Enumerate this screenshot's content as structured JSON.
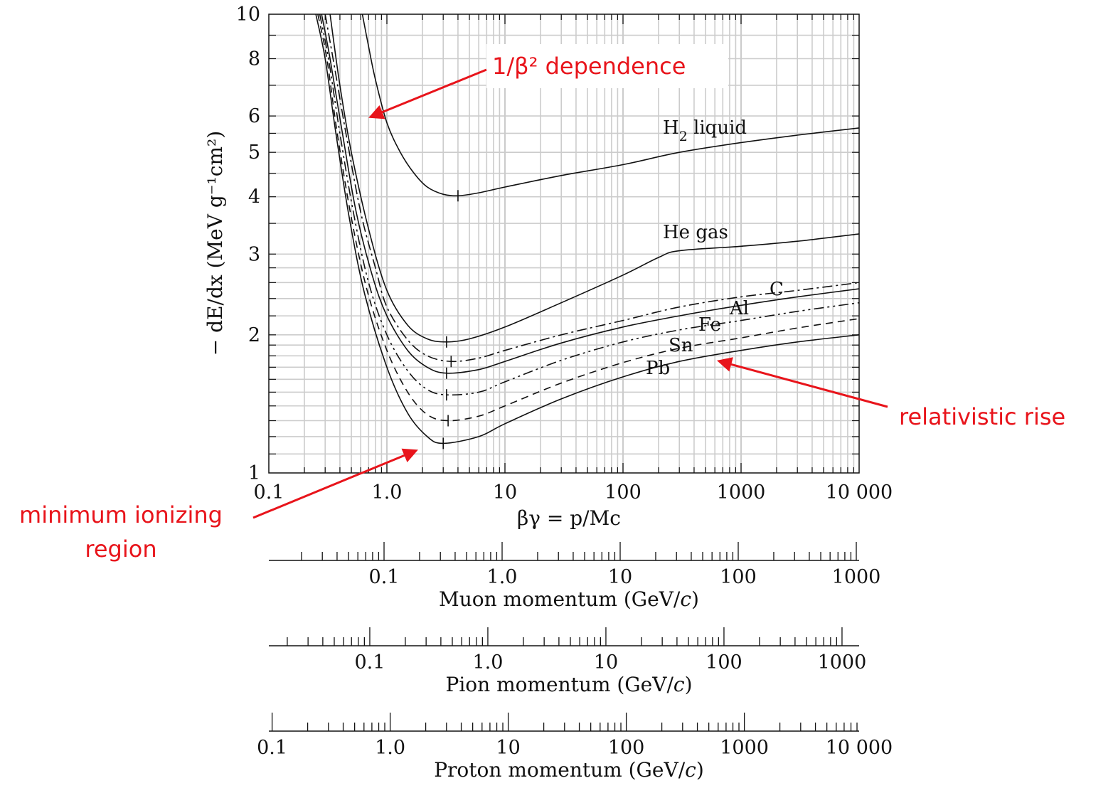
{
  "chart_data": {
    "type": "line",
    "xscale": "log",
    "yscale": "log",
    "xlim": [
      0.1,
      10000
    ],
    "ylim": [
      1,
      10
    ],
    "grid": true,
    "x_ticks": [
      "0.1",
      "1.0",
      "10",
      "100",
      "1000",
      "10 000"
    ],
    "y_ticks": [
      "1",
      "2",
      "3",
      "4",
      "5",
      "6",
      "8",
      "10"
    ],
    "xlabel": "βγ = p/Mc",
    "ylabel": "− dE/dx (MeV g⁻¹cm²)",
    "series": [
      {
        "name": "H2 liquid",
        "label_main": "H",
        "label_sub": "2",
        "label_rest": " liquid",
        "min_bg": 4.0,
        "points": [
          [
            0.62,
            10
          ],
          [
            0.7,
            8.5
          ],
          [
            0.8,
            7.2
          ],
          [
            1.0,
            5.8
          ],
          [
            1.3,
            5.0
          ],
          [
            1.7,
            4.5
          ],
          [
            2.2,
            4.2
          ],
          [
            3.0,
            4.05
          ],
          [
            4.0,
            4.02
          ],
          [
            6,
            4.08
          ],
          [
            10,
            4.2
          ],
          [
            30,
            4.45
          ],
          [
            100,
            4.7
          ],
          [
            300,
            5.0
          ],
          [
            1000,
            5.25
          ],
          [
            3000,
            5.45
          ],
          [
            10000,
            5.65
          ]
        ]
      },
      {
        "name": "He gas",
        "label_main": "He gas",
        "min_bg": 3.2,
        "points": [
          [
            0.33,
            10
          ],
          [
            0.4,
            7.0
          ],
          [
            0.5,
            5.0
          ],
          [
            0.7,
            3.4
          ],
          [
            1.0,
            2.5
          ],
          [
            1.5,
            2.1
          ],
          [
            2.2,
            1.96
          ],
          [
            3.2,
            1.93
          ],
          [
            5,
            1.96
          ],
          [
            10,
            2.08
          ],
          [
            30,
            2.35
          ],
          [
            100,
            2.7
          ],
          [
            200,
            2.95
          ],
          [
            300,
            3.05
          ],
          [
            1000,
            3.12
          ],
          [
            3000,
            3.2
          ],
          [
            10000,
            3.32
          ]
        ]
      },
      {
        "name": "C",
        "label_main": "C",
        "min_bg": 3.5,
        "points": [
          [
            0.3,
            10
          ],
          [
            0.35,
            8.0
          ],
          [
            0.45,
            5.5
          ],
          [
            0.6,
            3.7
          ],
          [
            0.8,
            2.8
          ],
          [
            1.0,
            2.3
          ],
          [
            1.5,
            1.95
          ],
          [
            2.2,
            1.8
          ],
          [
            3.5,
            1.75
          ],
          [
            6,
            1.78
          ],
          [
            10,
            1.85
          ],
          [
            30,
            2.0
          ],
          [
            100,
            2.15
          ],
          [
            300,
            2.3
          ],
          [
            1000,
            2.42
          ],
          [
            3000,
            2.5
          ],
          [
            10000,
            2.6
          ]
        ]
      },
      {
        "name": "Al",
        "label_main": "Al",
        "min_bg": 3.2,
        "points": [
          [
            0.28,
            10
          ],
          [
            0.33,
            8.0
          ],
          [
            0.42,
            5.5
          ],
          [
            0.55,
            3.7
          ],
          [
            0.75,
            2.7
          ],
          [
            1.0,
            2.2
          ],
          [
            1.5,
            1.85
          ],
          [
            2.2,
            1.7
          ],
          [
            3.2,
            1.65
          ],
          [
            6,
            1.68
          ],
          [
            10,
            1.75
          ],
          [
            30,
            1.92
          ],
          [
            100,
            2.08
          ],
          [
            300,
            2.2
          ],
          [
            1000,
            2.32
          ],
          [
            3000,
            2.42
          ],
          [
            10000,
            2.52
          ]
        ]
      },
      {
        "name": "Fe",
        "label_main": "Fe",
        "min_bg": 3.2,
        "points": [
          [
            0.27,
            10
          ],
          [
            0.32,
            8.0
          ],
          [
            0.4,
            5.5
          ],
          [
            0.52,
            3.7
          ],
          [
            0.7,
            2.6
          ],
          [
            1.0,
            2.0
          ],
          [
            1.5,
            1.67
          ],
          [
            2.2,
            1.52
          ],
          [
            3.2,
            1.48
          ],
          [
            6,
            1.5
          ],
          [
            10,
            1.58
          ],
          [
            30,
            1.76
          ],
          [
            100,
            1.93
          ],
          [
            300,
            2.05
          ],
          [
            1000,
            2.15
          ],
          [
            3000,
            2.25
          ],
          [
            10000,
            2.35
          ]
        ]
      },
      {
        "name": "Sn",
        "label_main": "Sn",
        "min_bg": 3.3,
        "points": [
          [
            0.26,
            10
          ],
          [
            0.31,
            8.0
          ],
          [
            0.38,
            5.5
          ],
          [
            0.5,
            3.6
          ],
          [
            0.68,
            2.5
          ],
          [
            1.0,
            1.85
          ],
          [
            1.5,
            1.5
          ],
          [
            2.2,
            1.34
          ],
          [
            3.3,
            1.3
          ],
          [
            6,
            1.33
          ],
          [
            10,
            1.4
          ],
          [
            30,
            1.57
          ],
          [
            100,
            1.74
          ],
          [
            300,
            1.87
          ],
          [
            1000,
            1.97
          ],
          [
            3000,
            2.07
          ],
          [
            10000,
            2.17
          ]
        ]
      },
      {
        "name": "Pb",
        "label_main": "Pb",
        "min_bg": 3.0,
        "points": [
          [
            0.25,
            10
          ],
          [
            0.3,
            8.0
          ],
          [
            0.37,
            5.5
          ],
          [
            0.48,
            3.6
          ],
          [
            0.65,
            2.45
          ],
          [
            1.0,
            1.7
          ],
          [
            1.5,
            1.35
          ],
          [
            2.2,
            1.2
          ],
          [
            3.0,
            1.16
          ],
          [
            6,
            1.2
          ],
          [
            10,
            1.28
          ],
          [
            30,
            1.45
          ],
          [
            100,
            1.62
          ],
          [
            300,
            1.75
          ],
          [
            1000,
            1.85
          ],
          [
            3000,
            1.93
          ],
          [
            10000,
            2.0
          ]
        ]
      }
    ],
    "annotations": [
      {
        "text": "1/β² dependence"
      },
      {
        "text": "relativistic rise"
      },
      {
        "text_line1": "minimum ionizing",
        "text_line2": "region"
      }
    ],
    "secondary_axes": [
      {
        "title_main": "Muon momentum (GeV/",
        "title_italic": "c",
        "title_end": ")",
        "mass": 0.1057,
        "major_ticks": [
          0.1,
          1.0,
          10,
          100,
          1000
        ],
        "labels": [
          "0.1",
          "1.0",
          "10",
          "100",
          "1000"
        ]
      },
      {
        "title_main": "Pion momentum (GeV/",
        "title_italic": "c",
        "title_end": ")",
        "mass": 0.1396,
        "major_ticks": [
          0.1,
          1.0,
          10,
          100,
          1000
        ],
        "labels": [
          "0.1",
          "1.0",
          "10",
          "100",
          "1000"
        ]
      },
      {
        "title_main": "Proton momentum (GeV/",
        "title_italic": "c",
        "title_end": ")",
        "mass": 0.938,
        "major_ticks": [
          0.1,
          1.0,
          10,
          100,
          1000,
          10000
        ],
        "labels": [
          "0.1",
          "1.0",
          "10",
          "100",
          "1000",
          "10 000"
        ]
      }
    ],
    "colors": {
      "curve": "#111111",
      "grid": "#cccccc",
      "annotation": "#e8141b",
      "axis": "#111111"
    }
  }
}
